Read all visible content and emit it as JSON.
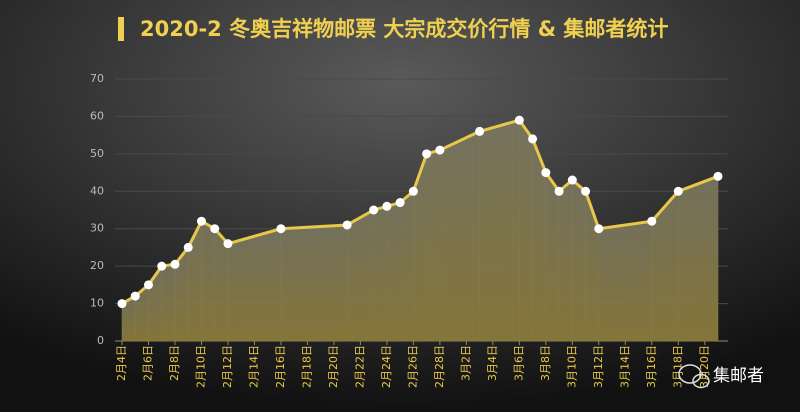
{
  "chart_data": {
    "type": "area-line",
    "title": "2020-2 冬奥吉祥物邮票 大宗成交价行情 & 集邮者统计",
    "categories": [
      "2月4日",
      null,
      "2月6日",
      null,
      "2月8日",
      null,
      "2月10日",
      null,
      "2月12日",
      null,
      "2月14日",
      null,
      "2月16日",
      null,
      "2月18日",
      null,
      "2月20日",
      null,
      "2月22日",
      null,
      "2月24日",
      null,
      "2月26日",
      null,
      "2月28日",
      null,
      "3月2日",
      null,
      "3月4日",
      null,
      "3月6日",
      null,
      "3月8日",
      null,
      "3月10日",
      null,
      "3月12日",
      null,
      "3月14日",
      null,
      "3月16日",
      null,
      "3月18日",
      null,
      "3月20日",
      null
    ],
    "values": [
      10,
      12,
      15,
      20,
      20.5,
      25,
      32,
      30,
      26,
      null,
      null,
      null,
      30,
      null,
      null,
      null,
      null,
      31,
      null,
      35,
      36,
      37,
      40,
      50,
      51,
      null,
      null,
      56,
      null,
      null,
      59,
      54,
      45,
      40,
      43,
      40,
      30,
      null,
      null,
      null,
      32,
      null,
      40,
      null,
      null,
      44
    ],
    "color": "#e8c84a",
    "ylim": [
      0,
      70
    ],
    "yticks": [
      0,
      10,
      20,
      30,
      40,
      50,
      60,
      70
    ],
    "grid": true
  },
  "watermark": "集邮者"
}
